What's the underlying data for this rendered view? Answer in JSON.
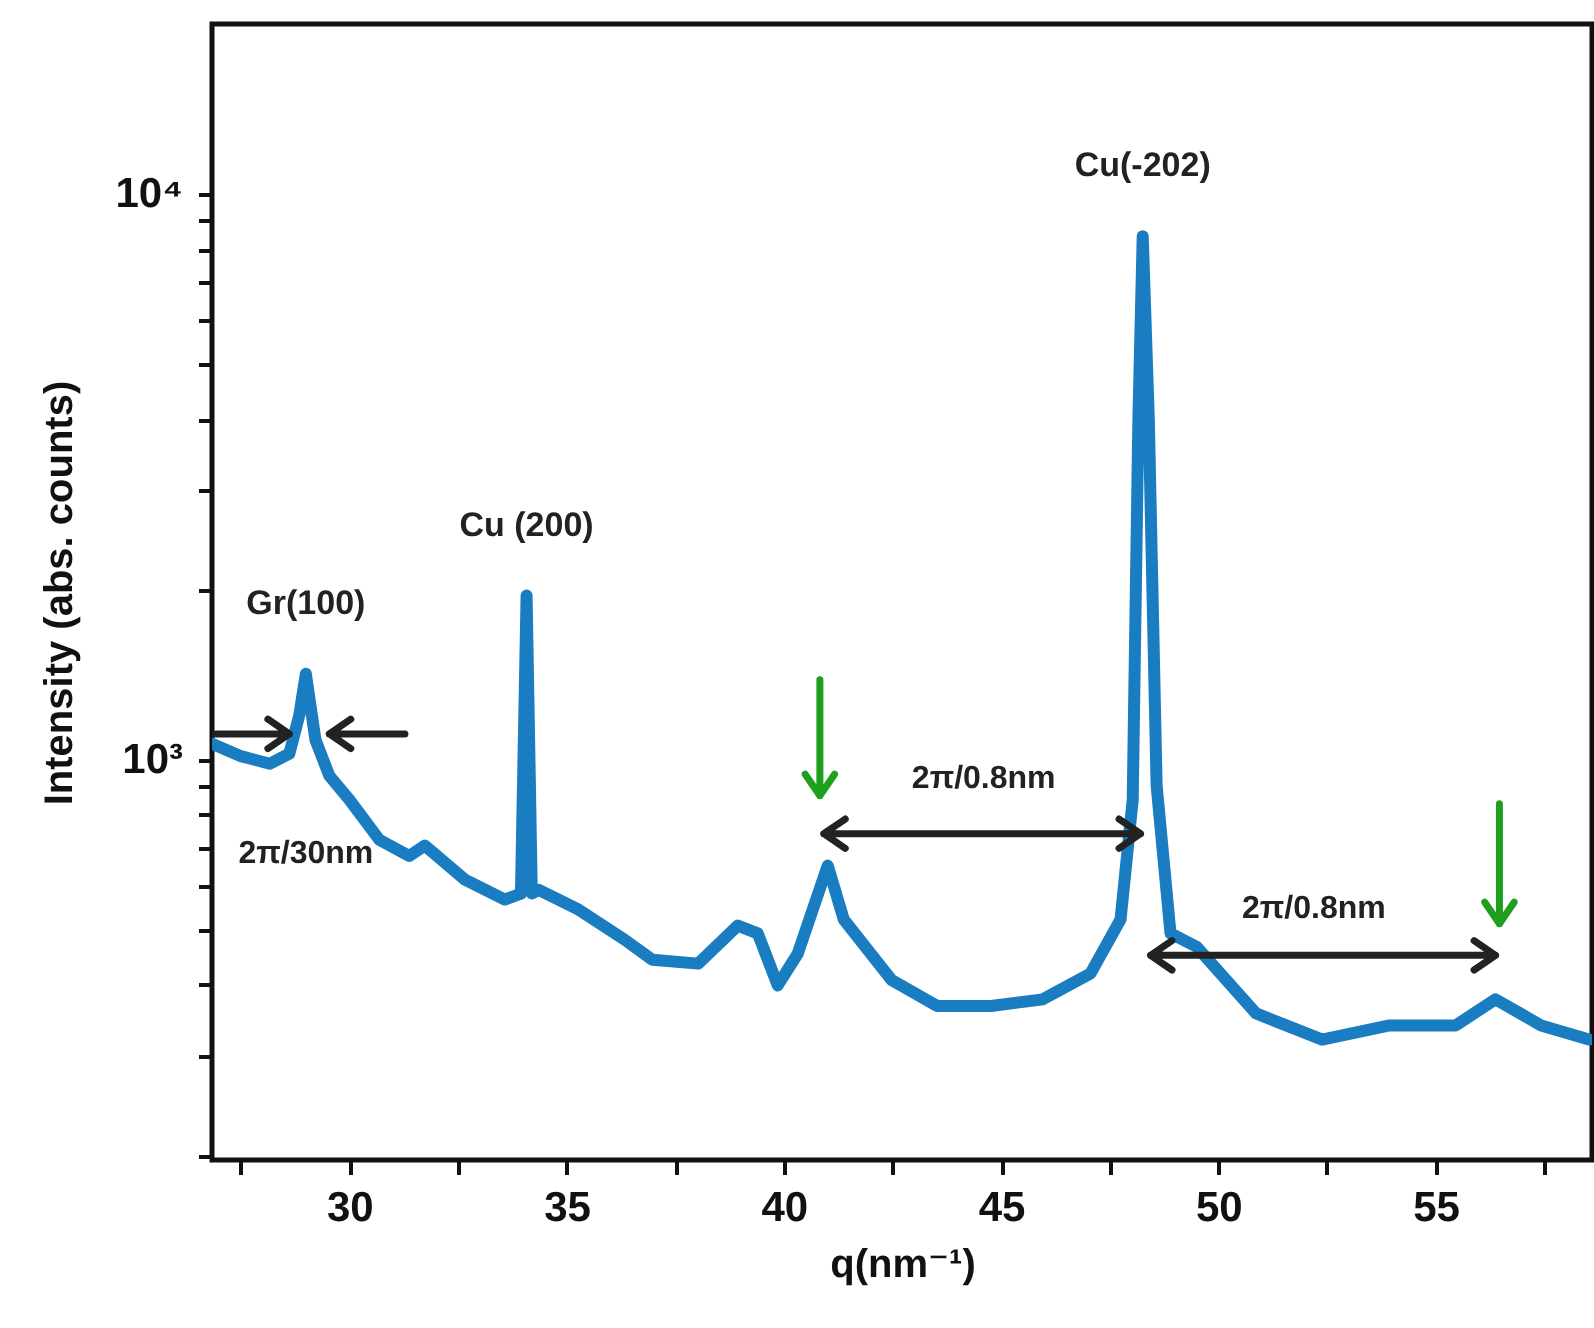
{
  "chart_data": {
    "type": "line",
    "xlabel": "q(nm⁻¹)",
    "ylabel": "Intensity (abs. counts)",
    "log": "y",
    "grid": false,
    "marker": "none",
    "line_style": "solid",
    "xlim": [
      26.84,
      58.6
    ],
    "ylim": [
      196,
      20000
    ],
    "xticks": [
      {
        "value": 27.5,
        "label": null
      },
      30,
      {
        "value": 32.5,
        "label": null
      },
      35,
      {
        "value": 37.5,
        "label": null
      },
      40,
      {
        "value": 42.5,
        "label": null
      },
      45,
      {
        "value": 47.5,
        "label": null
      },
      50,
      {
        "value": 52.5,
        "label": null
      },
      55,
      {
        "value": 57.5,
        "label": null
      }
    ],
    "yticks": [
      {
        "value": 200,
        "label": null
      },
      {
        "value": 300,
        "label": null
      },
      {
        "value": 400,
        "label": null
      },
      {
        "value": 500,
        "label": null
      },
      {
        "value": 600,
        "label": null
      },
      {
        "value": 700,
        "label": null
      },
      {
        "value": 800,
        "label": null
      },
      {
        "value": 900,
        "label": null
      },
      {
        "value": 1000,
        "label": "10³"
      },
      {
        "value": 2000,
        "label": null
      },
      {
        "value": 3000,
        "label": null
      },
      {
        "value": 4000,
        "label": null
      },
      {
        "value": 5000,
        "label": null
      },
      {
        "value": 6000,
        "label": null
      },
      {
        "value": 7000,
        "label": null
      },
      {
        "value": 8000,
        "label": null
      },
      {
        "value": 9000,
        "label": null
      },
      {
        "value": 10000,
        "label": "10⁴"
      }
    ],
    "series": [
      {
        "color": "#1a7cc1",
        "x": [
          26.84,
          27.48,
          28.17,
          28.62,
          28.85,
          29.0,
          29.22,
          29.54,
          30.0,
          30.69,
          31.38,
          31.74,
          32.66,
          33.58,
          33.95,
          34.08,
          34.2,
          34.36,
          35.28,
          36.33,
          36.97,
          38.03,
          38.94,
          39.4,
          39.86,
          40.32,
          41.01,
          41.38,
          42.48,
          43.53,
          44.77,
          45.96,
          47.06,
          47.75,
          48.03,
          48.16,
          48.26,
          48.4,
          48.58,
          48.9,
          49.5,
          50.87,
          52.39,
          53.94,
          55.46,
          56.38,
          57.43,
          58.53
        ],
        "values": [
          1067,
          1016,
          984,
          1025,
          1200,
          1419,
          1085,
          937,
          850,
          722,
          676,
          705,
          614,
          566,
          580,
          1951,
          580,
          589,
          543,
          481,
          443,
          436,
          509,
          493,
          399,
          454,
          650,
          522,
          408,
          367,
          367,
          377,
          419,
          522,
          850,
          4000,
          8430,
          4000,
          900,
          493,
          467,
          356,
          320,
          339,
          339,
          377,
          339,
          320
        ]
      }
    ],
    "annotations": [
      {
        "text": "Gr(100)",
        "x": 29.0,
        "y": 1419
      },
      {
        "text": "Cu (200)",
        "x": 34.08,
        "y": 1951
      },
      {
        "text": "Cu(-202)",
        "x": 48.26,
        "y": 8430
      },
      "2π/30nm",
      "2π/0.8nm",
      "2π/0.8nm"
    ]
  }
}
